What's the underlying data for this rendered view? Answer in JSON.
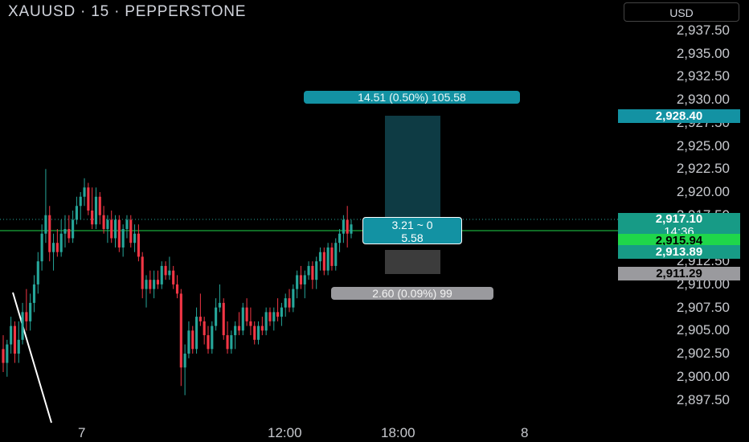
{
  "header": {
    "title": "XAUUSD · 15 · PEPPERSTONE",
    "currency": "USD"
  },
  "y_axis": {
    "ticks": [
      "2,937.50",
      "2,935.00",
      "2,932.50",
      "2,930.00",
      "2,927.50",
      "2,925.00",
      "2,922.50",
      "2,920.00",
      "2,917.50",
      "2,915.00",
      "2,912.50",
      "2,910.00",
      "2,907.50",
      "2,905.00",
      "2,902.50",
      "2,900.00",
      "2,897.50"
    ],
    "range": [
      2896.5,
      2939.5
    ]
  },
  "x_axis": {
    "ticks": [
      "7",
      "12:00",
      "18:00",
      "8"
    ]
  },
  "price_tags": {
    "target": "2,928.40",
    "last": "2,917.10",
    "countdown": "14:36",
    "entry": "2,915.94",
    "entry_line_tag": "2,913.89",
    "stop": "2,911.29"
  },
  "position_tool": {
    "target_label": "14.51 (0.50%) 105.58",
    "center_label_1": "3.21 ~ 0",
    "center_label_2": "5.58",
    "stop_label": "2.60 (0.09%) 99"
  },
  "colors": {
    "up": "#26a69a",
    "down": "#f23645",
    "entry_line": "#1fd64a",
    "target_zone": "#0e3b44",
    "stop_zone": "#3c3c3c",
    "tag_teal": "#1392a3"
  },
  "chart_data": {
    "type": "candlestick",
    "symbol": "XAUUSD",
    "timeframe": "15",
    "ohlc": [
      [
        2903.0,
        2904.5,
        2900.5,
        2901.5
      ],
      [
        2901.5,
        2904.0,
        2900.0,
        2903.5
      ],
      [
        2903.5,
        2906.5,
        2902.5,
        2905.5
      ],
      [
        2905.5,
        2906.0,
        2901.5,
        2902.5
      ],
      [
        2902.5,
        2906.0,
        2901.5,
        2904.0
      ],
      [
        2904.0,
        2908.0,
        2903.5,
        2907.0
      ],
      [
        2907.0,
        2909.5,
        2905.0,
        2906.0
      ],
      [
        2906.0,
        2909.0,
        2905.0,
        2908.0
      ],
      [
        2908.0,
        2911.0,
        2907.0,
        2910.0
      ],
      [
        2910.0,
        2913.5,
        2909.0,
        2912.5
      ],
      [
        2912.5,
        2916.5,
        2911.5,
        2915.5
      ],
      [
        2915.5,
        2922.5,
        2914.5,
        2917.5
      ],
      [
        2917.5,
        2918.5,
        2912.5,
        2913.5
      ],
      [
        2913.5,
        2915.5,
        2911.5,
        2914.5
      ],
      [
        2914.5,
        2916.0,
        2913.0,
        2913.5
      ],
      [
        2913.5,
        2917.0,
        2913.0,
        2915.5
      ],
      [
        2915.5,
        2917.5,
        2914.0,
        2916.0
      ],
      [
        2916.0,
        2917.5,
        2914.5,
        2915.0
      ],
      [
        2915.0,
        2918.0,
        2914.5,
        2917.0
      ],
      [
        2917.0,
        2919.5,
        2916.5,
        2918.5
      ],
      [
        2918.5,
        2920.0,
        2917.0,
        2919.5
      ],
      [
        2919.5,
        2921.5,
        2918.5,
        2920.5
      ],
      [
        2920.5,
        2921.0,
        2917.5,
        2918.0
      ],
      [
        2918.0,
        2920.5,
        2916.0,
        2916.5
      ],
      [
        2916.5,
        2920.5,
        2916.0,
        2919.5
      ],
      [
        2919.5,
        2920.0,
        2916.5,
        2917.5
      ],
      [
        2917.5,
        2918.5,
        2915.5,
        2916.0
      ],
      [
        2916.0,
        2917.5,
        2914.5,
        2917.0
      ],
      [
        2917.0,
        2918.0,
        2914.5,
        2915.0
      ],
      [
        2915.0,
        2917.5,
        2914.0,
        2917.0
      ],
      [
        2917.0,
        2917.5,
        2913.5,
        2914.0
      ],
      [
        2914.0,
        2916.5,
        2913.0,
        2916.0
      ],
      [
        2916.0,
        2917.5,
        2915.0,
        2917.0
      ],
      [
        2917.0,
        2917.5,
        2914.0,
        2914.5
      ],
      [
        2914.5,
        2916.5,
        2913.5,
        2915.5
      ],
      [
        2915.5,
        2916.5,
        2912.5,
        2913.0
      ],
      [
        2913.0,
        2913.5,
        2908.5,
        2909.5
      ],
      [
        2909.5,
        2911.0,
        2907.5,
        2910.5
      ],
      [
        2910.5,
        2911.5,
        2909.0,
        2909.5
      ],
      [
        2909.5,
        2911.5,
        2908.5,
        2910.5
      ],
      [
        2910.5,
        2911.5,
        2909.5,
        2910.0
      ],
      [
        2910.0,
        2912.5,
        2909.5,
        2912.0
      ],
      [
        2912.0,
        2912.5,
        2910.5,
        2911.0
      ],
      [
        2911.0,
        2913.0,
        2910.5,
        2911.5
      ],
      [
        2911.5,
        2912.0,
        2909.5,
        2910.0
      ],
      [
        2910.0,
        2911.0,
        2908.5,
        2909.0
      ],
      [
        2909.0,
        2909.5,
        2899.0,
        2901.0
      ],
      [
        2901.0,
        2903.5,
        2898.0,
        2902.5
      ],
      [
        2902.5,
        2906.0,
        2902.0,
        2905.0
      ],
      [
        2905.0,
        2905.5,
        2902.5,
        2903.0
      ],
      [
        2903.0,
        2907.5,
        2902.5,
        2906.5
      ],
      [
        2906.5,
        2909.0,
        2905.5,
        2906.0
      ],
      [
        2906.0,
        2906.5,
        2903.5,
        2904.5
      ],
      [
        2904.5,
        2905.5,
        2902.5,
        2903.0
      ],
      [
        2903.0,
        2906.0,
        2902.5,
        2905.5
      ],
      [
        2905.5,
        2908.5,
        2905.0,
        2907.5
      ],
      [
        2907.5,
        2910.0,
        2907.0,
        2908.0
      ],
      [
        2908.0,
        2908.5,
        2904.0,
        2904.5
      ],
      [
        2904.5,
        2906.0,
        2902.5,
        2903.0
      ],
      [
        2903.0,
        2905.0,
        2902.5,
        2904.5
      ],
      [
        2904.5,
        2906.0,
        2903.0,
        2905.5
      ],
      [
        2905.5,
        2907.0,
        2904.5,
        2905.0
      ],
      [
        2905.0,
        2908.0,
        2904.5,
        2907.5
      ],
      [
        2907.5,
        2908.5,
        2905.5,
        2906.0
      ],
      [
        2906.0,
        2907.5,
        2904.5,
        2905.5
      ],
      [
        2905.5,
        2906.0,
        2903.5,
        2904.0
      ],
      [
        2904.0,
        2906.0,
        2903.5,
        2905.5
      ],
      [
        2905.5,
        2906.5,
        2904.5,
        2905.0
      ],
      [
        2905.0,
        2907.5,
        2904.5,
        2907.0
      ],
      [
        2907.0,
        2907.5,
        2905.5,
        2906.0
      ],
      [
        2906.0,
        2907.5,
        2905.0,
        2907.0
      ],
      [
        2907.0,
        2908.5,
        2906.0,
        2906.5
      ],
      [
        2906.5,
        2908.0,
        2905.5,
        2907.5
      ],
      [
        2907.5,
        2909.0,
        2906.5,
        2908.5
      ],
      [
        2908.5,
        2909.5,
        2907.0,
        2907.5
      ],
      [
        2907.5,
        2910.0,
        2907.0,
        2909.5
      ],
      [
        2909.5,
        2911.5,
        2908.5,
        2911.0
      ],
      [
        2911.0,
        2912.0,
        2909.5,
        2910.0
      ],
      [
        2910.0,
        2911.5,
        2908.5,
        2911.0
      ],
      [
        2911.0,
        2912.5,
        2910.5,
        2912.0
      ],
      [
        2912.0,
        2912.5,
        2909.5,
        2910.5
      ],
      [
        2910.5,
        2913.0,
        2909.5,
        2912.5
      ],
      [
        2912.5,
        2914.0,
        2911.5,
        2913.5
      ],
      [
        2913.5,
        2914.0,
        2911.0,
        2911.5
      ],
      [
        2911.5,
        2914.5,
        2911.0,
        2914.0
      ],
      [
        2914.0,
        2914.5,
        2911.5,
        2912.0
      ],
      [
        2912.0,
        2915.0,
        2911.5,
        2914.5
      ],
      [
        2914.5,
        2916.0,
        2913.5,
        2915.5
      ],
      [
        2915.5,
        2917.5,
        2914.5,
        2917.0
      ],
      [
        2917.0,
        2918.5,
        2914.0,
        2915.5
      ],
      [
        2915.5,
        2917.0,
        2915.0,
        2916.5
      ]
    ]
  }
}
